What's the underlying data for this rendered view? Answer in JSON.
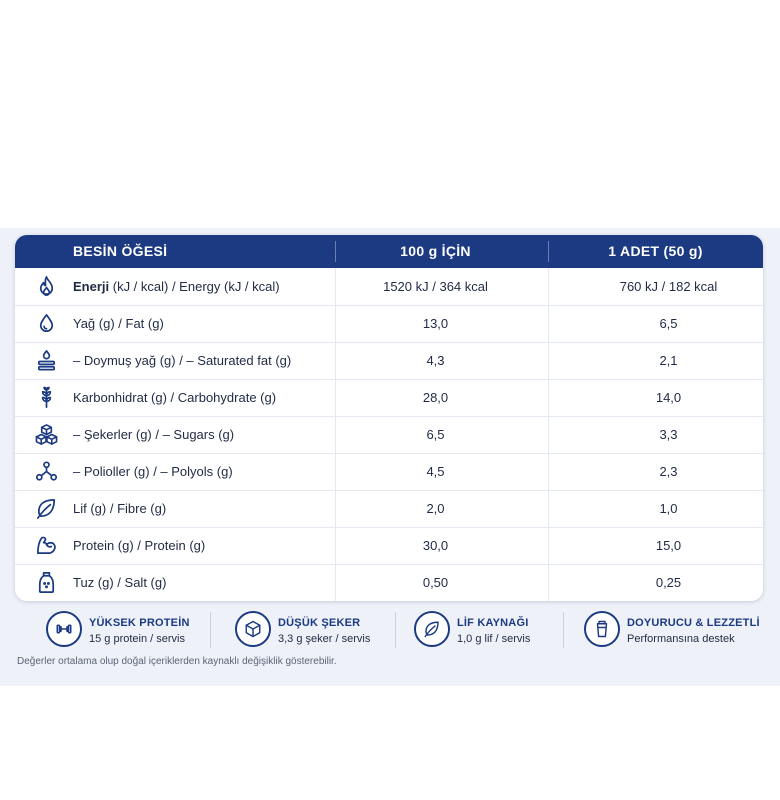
{
  "table": {
    "headers": [
      "BESİN ÖĞESİ",
      "100 g İÇİN",
      "1 ADET (50 g)"
    ],
    "rows": [
      {
        "icon": "flame-icon",
        "label_bold": "Enerji",
        "label_rest": " (kJ / kcal) / Energy (kJ / kcal)",
        "per100": "1520 kJ / 364 kcal",
        "perUnit": "760 kJ / 182 kcal"
      },
      {
        "icon": "drop-icon",
        "label_bold": "",
        "label_rest": "Yağ (g) / Fat (g)",
        "per100": "13,0",
        "perUnit": "6,5"
      },
      {
        "icon": "saturated-fat-icon",
        "label_bold": "",
        "label_rest": "– Doymuş yağ (g) / – Saturated fat (g)",
        "per100": "4,3",
        "perUnit": "2,1"
      },
      {
        "icon": "wheat-icon",
        "label_bold": "",
        "label_rest": "Karbonhidrat (g) / Carbohydrate (g)",
        "per100": "28,0",
        "perUnit": "14,0"
      },
      {
        "icon": "sugar-cubes-icon",
        "label_bold": "",
        "label_rest": "– Şekerler (g) / – Sugars (g)",
        "per100": "6,5",
        "perUnit": "3,3"
      },
      {
        "icon": "molecule-icon",
        "label_bold": "",
        "label_rest": "– Polioller (g) / – Polyols (g)",
        "per100": "4,5",
        "perUnit": "2,3"
      },
      {
        "icon": "leaf-icon",
        "label_bold": "",
        "label_rest": "Lif (g) / Fibre (g)",
        "per100": "2,0",
        "perUnit": "1,0"
      },
      {
        "icon": "muscle-icon",
        "label_bold": "",
        "label_rest": "Protein (g) / Protein (g)",
        "per100": "30,0",
        "perUnit": "15,0"
      },
      {
        "icon": "salt-shaker-icon",
        "label_bold": "",
        "label_rest": "Tuz (g) / Salt (g)",
        "per100": "0,50",
        "perUnit": "0,25"
      }
    ]
  },
  "badges": [
    {
      "icon": "dumbbell-icon",
      "title": "YÜKSEK PROTEİN",
      "subtitle": "15 g protein / servis"
    },
    {
      "icon": "cube-icon",
      "title": "DÜŞÜK ŞEKER",
      "subtitle": "3,3 g şeker / servis"
    },
    {
      "icon": "leaf-icon",
      "title": "LİF KAYNAĞI",
      "subtitle": "1,0 g lif / servis"
    },
    {
      "icon": "shaker-cup-icon",
      "title": "DOYURUCU & LEZZETLİ",
      "subtitle": "Performansına destek"
    }
  ],
  "footnote": "Değerler ortalama olup doğal içeriklerden kaynaklı değişiklik gösterebilir.",
  "colors": {
    "header": "#1b3a82",
    "panel": "#eef1f7",
    "text": "#1f2a44"
  }
}
